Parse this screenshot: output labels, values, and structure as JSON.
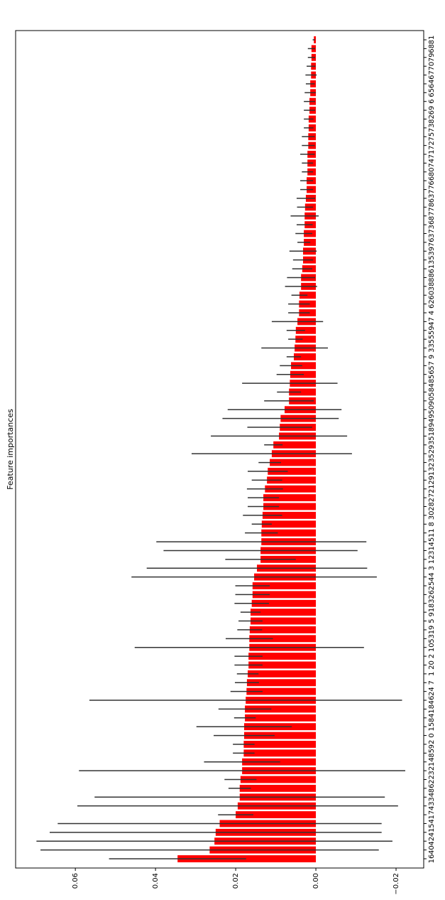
{
  "chart_data": {
    "type": "barh",
    "title": "Feature importances",
    "categories": [
      "16",
      "40",
      "42",
      "41",
      "54",
      "17",
      "43",
      "34",
      "86",
      "22",
      "32",
      "14",
      "85",
      "92",
      "0",
      "15",
      "84",
      "18",
      "46",
      "24",
      "7",
      "1",
      "20",
      "2",
      "10",
      "53",
      "19",
      "5",
      "91",
      "83",
      "26",
      "25",
      "44",
      "3",
      "12",
      "31",
      "45",
      "11",
      "8",
      "30",
      "28",
      "27",
      "21",
      "29",
      "13",
      "23",
      "52",
      "93",
      "51",
      "89",
      "49",
      "50",
      "90",
      "58",
      "48",
      "56",
      "57",
      "9",
      "33",
      "55",
      "59",
      "47",
      "4",
      "62",
      "60",
      "38",
      "88",
      "61",
      "35",
      "39",
      "76",
      "37",
      "36",
      "87",
      "78",
      "63",
      "77",
      "66",
      "80",
      "74",
      "71",
      "72",
      "75",
      "73",
      "82",
      "69",
      "6",
      "65",
      "64",
      "67",
      "70",
      "79",
      "68",
      "81"
    ],
    "values": [
      0.0345,
      0.0265,
      0.0253,
      0.025,
      0.024,
      0.02,
      0.0195,
      0.019,
      0.019,
      0.0188,
      0.0184,
      0.0184,
      0.018,
      0.018,
      0.0179,
      0.0179,
      0.0177,
      0.0177,
      0.0175,
      0.0173,
      0.0172,
      0.017,
      0.0168,
      0.0168,
      0.0166,
      0.0166,
      0.0165,
      0.0163,
      0.0163,
      0.016,
      0.0158,
      0.0158,
      0.0154,
      0.0147,
      0.0138,
      0.0138,
      0.0136,
      0.0136,
      0.0135,
      0.0133,
      0.0131,
      0.0131,
      0.0127,
      0.0122,
      0.012,
      0.0115,
      0.011,
      0.0106,
      0.0092,
      0.009,
      0.0088,
      0.0078,
      0.0067,
      0.0067,
      0.0065,
      0.0064,
      0.0062,
      0.0055,
      0.0053,
      0.0051,
      0.005,
      0.0046,
      0.0042,
      0.0042,
      0.0041,
      0.0037,
      0.0037,
      0.0034,
      0.0032,
      0.0032,
      0.003,
      0.003,
      0.0028,
      0.0028,
      0.0027,
      0.0025,
      0.0023,
      0.0023,
      0.0021,
      0.0021,
      0.0021,
      0.0019,
      0.0019,
      0.0018,
      0.0018,
      0.0016,
      0.0016,
      0.0014,
      0.0014,
      0.0012,
      0.0012,
      0.0011,
      0.0011,
      0.0005
    ],
    "errors": [
      0.0171,
      0.0422,
      0.0444,
      0.0414,
      0.0404,
      0.0044,
      0.04,
      0.0362,
      0.0028,
      0.004,
      0.0407,
      0.0095,
      0.0027,
      0.0027,
      0.0076,
      0.0119,
      0.0027,
      0.0066,
      0.039,
      0.004,
      0.003,
      0.0027,
      0.0035,
      0.0035,
      0.0286,
      0.0059,
      0.0031,
      0.003,
      0.0025,
      0.0043,
      0.0043,
      0.0043,
      0.0306,
      0.0275,
      0.0088,
      0.0242,
      0.0262,
      0.0041,
      0.0025,
      0.0049,
      0.0039,
      0.0039,
      0.0045,
      0.0038,
      0.005,
      0.0028,
      0.02,
      0.0023,
      0.017,
      0.0081,
      0.0145,
      0.0142,
      0.0062,
      0.003,
      0.0119,
      0.0034,
      0.0028,
      0.0018,
      0.0083,
      0.0018,
      0.0023,
      0.0064,
      0.0027,
      0.0027,
      0.002,
      0.004,
      0.0035,
      0.0025,
      0.0025,
      0.0034,
      0.0016,
      0.0021,
      0.002,
      0.0035,
      0.002,
      0.0023,
      0.0016,
      0.0016,
      0.0014,
      0.0014,
      0.0018,
      0.0016,
      0.0016,
      0.0012,
      0.0012,
      0.0014,
      0.0014,
      0.0014,
      0.0011,
      0.0014,
      0.0011,
      0.0009,
      0.0009,
      0.0003
    ],
    "color": "#ff0000",
    "error_color": "#333333",
    "xlim": [
      0.0749,
      -0.0269
    ],
    "xticks": [
      0.06,
      0.04,
      0.02,
      {
        "value": 0,
        "label": "0.00"
      },
      {
        "value": -0.02,
        "label": "−0.02"
      }
    ]
  }
}
